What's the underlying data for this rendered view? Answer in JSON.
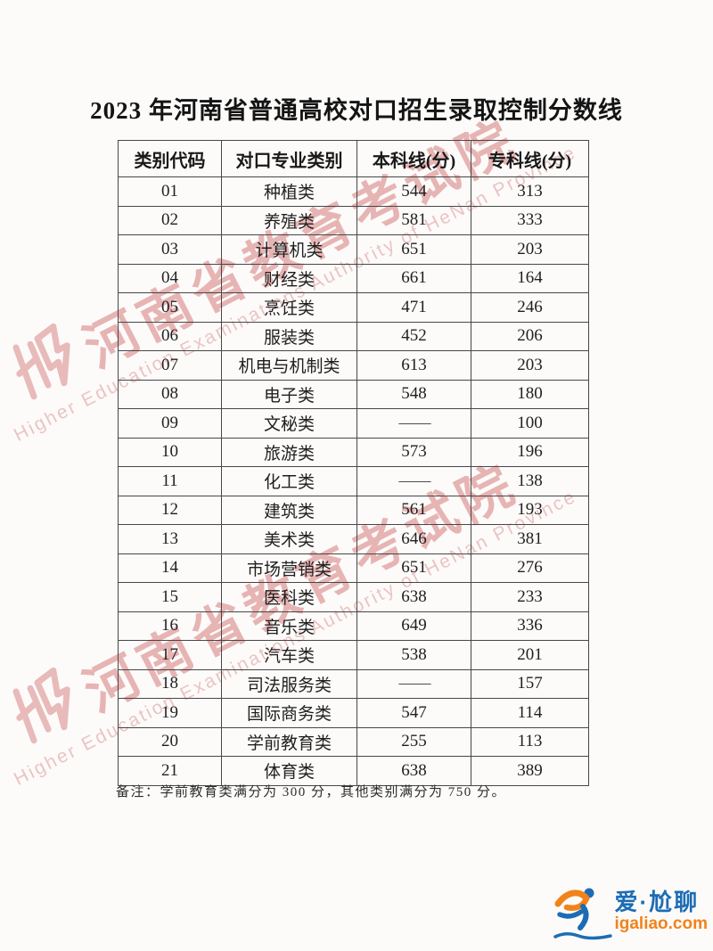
{
  "title": "2023 年河南省普通高校对口招生录取控制分数线",
  "table": {
    "headers": [
      "类别代码",
      "对口专业类别",
      "本科线(分)",
      "专科线(分)"
    ],
    "rows": [
      [
        "01",
        "种植类",
        "544",
        "313"
      ],
      [
        "02",
        "养殖类",
        "581",
        "333"
      ],
      [
        "03",
        "计算机类",
        "651",
        "203"
      ],
      [
        "04",
        "财经类",
        "661",
        "164"
      ],
      [
        "05",
        "烹饪类",
        "471",
        "246"
      ],
      [
        "06",
        "服装类",
        "452",
        "206"
      ],
      [
        "07",
        "机电与机制类",
        "613",
        "203"
      ],
      [
        "08",
        "电子类",
        "548",
        "180"
      ],
      [
        "09",
        "文秘类",
        "——",
        "100"
      ],
      [
        "10",
        "旅游类",
        "573",
        "196"
      ],
      [
        "11",
        "化工类",
        "——",
        "138"
      ],
      [
        "12",
        "建筑类",
        "561",
        "193"
      ],
      [
        "13",
        "美术类",
        "646",
        "381"
      ],
      [
        "14",
        "市场营销类",
        "651",
        "276"
      ],
      [
        "15",
        "医科类",
        "638",
        "233"
      ],
      [
        "16",
        "音乐类",
        "649",
        "336"
      ],
      [
        "17",
        "汽车类",
        "538",
        "201"
      ],
      [
        "18",
        "司法服务类",
        "——",
        "157"
      ],
      [
        "19",
        "国际商务类",
        "547",
        "114"
      ],
      [
        "20",
        "学前教育类",
        "255",
        "113"
      ],
      [
        "21",
        "体育类",
        "638",
        "389"
      ]
    ]
  },
  "note": "备注：学前教育类满分为 300 分，其他类别满分为 750 分。",
  "watermark": {
    "cn": "河南省教育考试院",
    "en": "Higher Education Examinations Authority of HeNan Province",
    "color": "#d88686"
  },
  "brand": {
    "cn": "爱·尬聊",
    "domain": "igaliao.com",
    "blue": "#1c6cb5",
    "orange": "#f2821a"
  }
}
